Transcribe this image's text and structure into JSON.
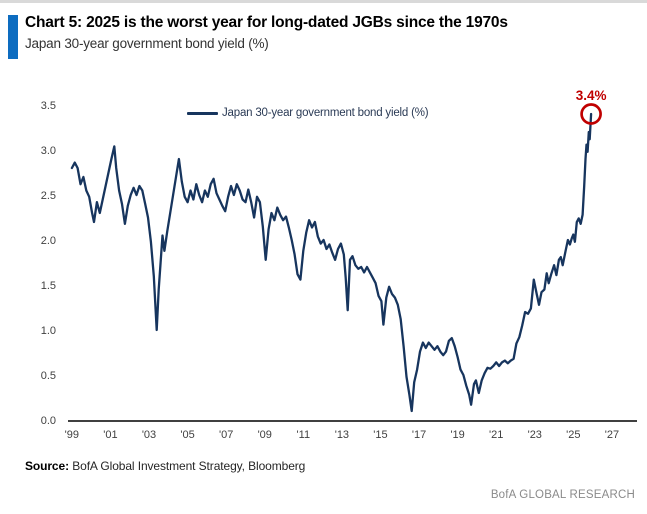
{
  "header": {
    "title": "Chart 5: 2025 is the worst year for long-dated JGBs since the 1970s",
    "subtitle": "Japan 30-year government bond yield (%)",
    "accent_color": "#0d6cc0"
  },
  "chart_data": {
    "type": "line",
    "title": "Chart 5: 2025 is the worst year for long-dated JGBs since the 1970s",
    "subtitle": "Japan 30-year government bond yield (%)",
    "xlabel": "",
    "ylabel": "",
    "grid": false,
    "legend_position": "top-center",
    "xlim": [
      1998.8,
      2028.3
    ],
    "ylim": [
      0,
      3.5
    ],
    "x_ticks": [
      1999,
      2001,
      2003,
      2005,
      2007,
      2009,
      2011,
      2013,
      2015,
      2017,
      2019,
      2021,
      2023,
      2025,
      2027
    ],
    "x_tick_labels": [
      "'99",
      "'01",
      "'03",
      "'05",
      "'07",
      "'09",
      "'11",
      "'13",
      "'15",
      "'17",
      "'19",
      "'21",
      "'23",
      "'25",
      "'27"
    ],
    "y_ticks": [
      0.0,
      0.5,
      1.0,
      1.5,
      2.0,
      2.5,
      3.0,
      3.5
    ],
    "y_tick_labels": [
      "0.0",
      "0.5",
      "1.0",
      "1.5",
      "2.0",
      "2.5",
      "3.0",
      "3.5"
    ],
    "line_color": "#17355e",
    "annotation": {
      "label": "3.4%",
      "year": 2025.92,
      "value": 3.4,
      "color": "#c00000"
    },
    "series": [
      {
        "name": "Japan 30-year government bond yield (%)",
        "color": "#17355e",
        "points": [
          [
            1999.0,
            2.8
          ],
          [
            1999.15,
            2.86
          ],
          [
            1999.3,
            2.8
          ],
          [
            1999.45,
            2.62
          ],
          [
            1999.6,
            2.7
          ],
          [
            1999.75,
            2.55
          ],
          [
            1999.9,
            2.48
          ],
          [
            2000.05,
            2.3
          ],
          [
            2000.15,
            2.2
          ],
          [
            2000.3,
            2.42
          ],
          [
            2000.45,
            2.3
          ],
          [
            2000.6,
            2.45
          ],
          [
            2000.75,
            2.6
          ],
          [
            2000.9,
            2.75
          ],
          [
            2001.05,
            2.9
          ],
          [
            2001.2,
            3.04
          ],
          [
            2001.3,
            2.8
          ],
          [
            2001.45,
            2.55
          ],
          [
            2001.6,
            2.4
          ],
          [
            2001.75,
            2.18
          ],
          [
            2001.9,
            2.38
          ],
          [
            2002.05,
            2.5
          ],
          [
            2002.2,
            2.58
          ],
          [
            2002.35,
            2.5
          ],
          [
            2002.5,
            2.6
          ],
          [
            2002.65,
            2.55
          ],
          [
            2002.8,
            2.4
          ],
          [
            2002.95,
            2.25
          ],
          [
            2003.1,
            1.98
          ],
          [
            2003.25,
            1.6
          ],
          [
            2003.4,
            1.0
          ],
          [
            2003.5,
            1.45
          ],
          [
            2003.6,
            1.75
          ],
          [
            2003.7,
            2.05
          ],
          [
            2003.8,
            1.88
          ],
          [
            2003.95,
            2.1
          ],
          [
            2004.1,
            2.3
          ],
          [
            2004.25,
            2.5
          ],
          [
            2004.4,
            2.7
          ],
          [
            2004.55,
            2.9
          ],
          [
            2004.7,
            2.65
          ],
          [
            2004.85,
            2.48
          ],
          [
            2005.0,
            2.42
          ],
          [
            2005.15,
            2.55
          ],
          [
            2005.3,
            2.45
          ],
          [
            2005.45,
            2.62
          ],
          [
            2005.6,
            2.5
          ],
          [
            2005.75,
            2.42
          ],
          [
            2005.9,
            2.55
          ],
          [
            2006.05,
            2.48
          ],
          [
            2006.2,
            2.62
          ],
          [
            2006.35,
            2.68
          ],
          [
            2006.5,
            2.52
          ],
          [
            2006.65,
            2.45
          ],
          [
            2006.8,
            2.38
          ],
          [
            2006.95,
            2.32
          ],
          [
            2007.1,
            2.48
          ],
          [
            2007.25,
            2.6
          ],
          [
            2007.4,
            2.5
          ],
          [
            2007.55,
            2.62
          ],
          [
            2007.7,
            2.55
          ],
          [
            2007.85,
            2.45
          ],
          [
            2008.0,
            2.42
          ],
          [
            2008.15,
            2.56
          ],
          [
            2008.3,
            2.42
          ],
          [
            2008.45,
            2.25
          ],
          [
            2008.6,
            2.48
          ],
          [
            2008.75,
            2.42
          ],
          [
            2008.9,
            2.15
          ],
          [
            2009.05,
            1.78
          ],
          [
            2009.2,
            2.12
          ],
          [
            2009.35,
            2.3
          ],
          [
            2009.5,
            2.22
          ],
          [
            2009.65,
            2.36
          ],
          [
            2009.8,
            2.28
          ],
          [
            2009.95,
            2.22
          ],
          [
            2010.1,
            2.26
          ],
          [
            2010.25,
            2.14
          ],
          [
            2010.4,
            2.0
          ],
          [
            2010.55,
            1.84
          ],
          [
            2010.7,
            1.62
          ],
          [
            2010.85,
            1.56
          ],
          [
            2011.0,
            1.88
          ],
          [
            2011.15,
            2.08
          ],
          [
            2011.3,
            2.22
          ],
          [
            2011.45,
            2.14
          ],
          [
            2011.6,
            2.2
          ],
          [
            2011.75,
            2.04
          ],
          [
            2011.9,
            1.96
          ],
          [
            2012.05,
            2.0
          ],
          [
            2012.2,
            1.9
          ],
          [
            2012.35,
            1.95
          ],
          [
            2012.5,
            1.86
          ],
          [
            2012.65,
            1.78
          ],
          [
            2012.8,
            1.9
          ],
          [
            2012.95,
            1.96
          ],
          [
            2013.1,
            1.84
          ],
          [
            2013.2,
            1.58
          ],
          [
            2013.3,
            1.22
          ],
          [
            2013.42,
            1.78
          ],
          [
            2013.55,
            1.82
          ],
          [
            2013.7,
            1.72
          ],
          [
            2013.85,
            1.68
          ],
          [
            2014.0,
            1.7
          ],
          [
            2014.15,
            1.64
          ],
          [
            2014.3,
            1.7
          ],
          [
            2014.45,
            1.64
          ],
          [
            2014.6,
            1.58
          ],
          [
            2014.75,
            1.52
          ],
          [
            2014.9,
            1.38
          ],
          [
            2015.05,
            1.32
          ],
          [
            2015.15,
            1.06
          ],
          [
            2015.3,
            1.36
          ],
          [
            2015.45,
            1.48
          ],
          [
            2015.6,
            1.4
          ],
          [
            2015.75,
            1.36
          ],
          [
            2015.9,
            1.28
          ],
          [
            2016.05,
            1.12
          ],
          [
            2016.2,
            0.82
          ],
          [
            2016.35,
            0.48
          ],
          [
            2016.5,
            0.28
          ],
          [
            2016.62,
            0.1
          ],
          [
            2016.75,
            0.42
          ],
          [
            2016.9,
            0.56
          ],
          [
            2017.05,
            0.76
          ],
          [
            2017.2,
            0.86
          ],
          [
            2017.35,
            0.8
          ],
          [
            2017.5,
            0.86
          ],
          [
            2017.65,
            0.82
          ],
          [
            2017.8,
            0.78
          ],
          [
            2017.95,
            0.82
          ],
          [
            2018.1,
            0.76
          ],
          [
            2018.25,
            0.72
          ],
          [
            2018.4,
            0.76
          ],
          [
            2018.55,
            0.88
          ],
          [
            2018.7,
            0.91
          ],
          [
            2018.85,
            0.82
          ],
          [
            2019.0,
            0.7
          ],
          [
            2019.15,
            0.56
          ],
          [
            2019.3,
            0.5
          ],
          [
            2019.45,
            0.38
          ],
          [
            2019.6,
            0.28
          ],
          [
            2019.7,
            0.17
          ],
          [
            2019.85,
            0.4
          ],
          [
            2019.95,
            0.44
          ],
          [
            2020.1,
            0.3
          ],
          [
            2020.25,
            0.44
          ],
          [
            2020.4,
            0.52
          ],
          [
            2020.55,
            0.58
          ],
          [
            2020.7,
            0.57
          ],
          [
            2020.85,
            0.6
          ],
          [
            2021.0,
            0.64
          ],
          [
            2021.15,
            0.6
          ],
          [
            2021.3,
            0.64
          ],
          [
            2021.45,
            0.66
          ],
          [
            2021.6,
            0.63
          ],
          [
            2021.75,
            0.66
          ],
          [
            2021.9,
            0.68
          ],
          [
            2022.05,
            0.85
          ],
          [
            2022.2,
            0.92
          ],
          [
            2022.35,
            1.05
          ],
          [
            2022.5,
            1.2
          ],
          [
            2022.65,
            1.18
          ],
          [
            2022.8,
            1.24
          ],
          [
            2022.95,
            1.56
          ],
          [
            2023.1,
            1.4
          ],
          [
            2023.22,
            1.28
          ],
          [
            2023.35,
            1.42
          ],
          [
            2023.5,
            1.45
          ],
          [
            2023.62,
            1.63
          ],
          [
            2023.72,
            1.52
          ],
          [
            2023.85,
            1.62
          ],
          [
            2024.0,
            1.72
          ],
          [
            2024.12,
            1.61
          ],
          [
            2024.25,
            1.78
          ],
          [
            2024.35,
            1.81
          ],
          [
            2024.45,
            1.72
          ],
          [
            2024.6,
            1.88
          ],
          [
            2024.72,
            2.0
          ],
          [
            2024.82,
            1.95
          ],
          [
            2024.92,
            2.02
          ],
          [
            2025.0,
            2.06
          ],
          [
            2025.08,
            1.98
          ],
          [
            2025.18,
            2.2
          ],
          [
            2025.28,
            2.24
          ],
          [
            2025.38,
            2.18
          ],
          [
            2025.48,
            2.28
          ],
          [
            2025.56,
            2.6
          ],
          [
            2025.63,
            2.9
          ],
          [
            2025.68,
            3.06
          ],
          [
            2025.74,
            2.98
          ],
          [
            2025.8,
            3.2
          ],
          [
            2025.85,
            3.12
          ],
          [
            2025.92,
            3.4
          ]
        ]
      }
    ]
  },
  "footer": {
    "source_label": "Source:",
    "source_text": " BofA Global Investment Strategy, Bloomberg",
    "brand": "BofA GLOBAL RESEARCH"
  }
}
